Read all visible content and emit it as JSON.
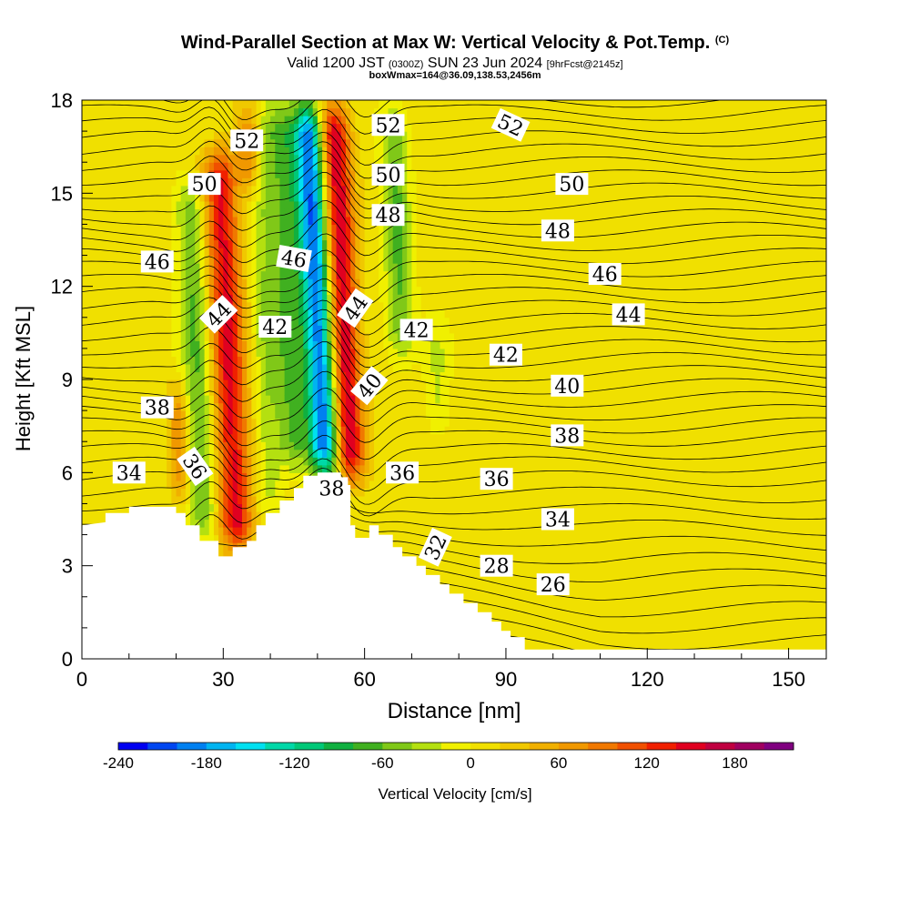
{
  "header": {
    "title": "Wind-Parallel Section at Max W: Vertical Velocity & Pot.Temp.",
    "copyright": "(C)",
    "valid_prefix": "Valid 1200 JST",
    "valid_utc": "(0300Z)",
    "valid_date": "SUN 23 Jun 2024",
    "forecast": "[9hrFcst@2145z]",
    "box_info": "boxWmax=164@36.09,138.53,2456m"
  },
  "chart_data": {
    "type": "heatmap",
    "title": "Wind-Parallel Section at Max W: Vertical Velocity & Pot.Temp.",
    "xlabel": "Distance [nm]",
    "ylabel": "Height [Kft MSL]",
    "xlim": [
      0,
      158
    ],
    "ylim": [
      0,
      18
    ],
    "x_ticks": [
      0,
      30,
      60,
      90,
      120,
      150
    ],
    "y_ticks": [
      0,
      3,
      6,
      9,
      12,
      15,
      18
    ],
    "colorbar": {
      "label": "Vertical Velocity [cm/s]",
      "min": -240,
      "max": 220,
      "step": 20,
      "tick_values": [
        -240,
        -180,
        -120,
        -60,
        0,
        60,
        120,
        180
      ],
      "colors": [
        "#0000f0",
        "#0046f0",
        "#0080f0",
        "#00b4f0",
        "#00e0f0",
        "#00d8a8",
        "#00c878",
        "#10b040",
        "#40b020",
        "#80c818",
        "#b4e010",
        "#f0f000",
        "#f0e000",
        "#f0c800",
        "#f0b000",
        "#f09800",
        "#f07800",
        "#f05000",
        "#f02000",
        "#e00020",
        "#c00040",
        "#a00060",
        "#800080"
      ]
    },
    "terrain": [
      [
        0,
        4.3
      ],
      [
        5,
        4.4
      ],
      [
        5,
        4.7
      ],
      [
        10,
        4.7
      ],
      [
        10,
        4.9
      ],
      [
        20,
        4.9
      ],
      [
        20,
        4.7
      ],
      [
        22,
        4.7
      ],
      [
        22,
        4.3
      ],
      [
        25,
        4.3
      ],
      [
        25,
        3.8
      ],
      [
        29,
        3.8
      ],
      [
        29,
        3.3
      ],
      [
        32,
        3.3
      ],
      [
        32,
        3.6
      ],
      [
        35,
        3.6
      ],
      [
        35,
        3.8
      ],
      [
        37,
        3.8
      ],
      [
        37,
        4.3
      ],
      [
        39,
        4.3
      ],
      [
        39,
        4.7
      ],
      [
        42,
        4.7
      ],
      [
        42,
        5.1
      ],
      [
        45,
        5.1
      ],
      [
        45,
        5.5
      ],
      [
        47,
        5.5
      ],
      [
        47,
        5.9
      ],
      [
        50,
        5.9
      ],
      [
        50,
        6.0
      ],
      [
        55,
        6.0
      ],
      [
        55,
        5.6
      ],
      [
        57,
        5.6
      ],
      [
        57,
        4.3
      ],
      [
        58,
        4.3
      ],
      [
        58,
        3.9
      ],
      [
        61,
        3.9
      ],
      [
        61,
        4.3
      ],
      [
        63,
        4.3
      ],
      [
        63,
        4.0
      ],
      [
        66,
        4.0
      ],
      [
        66,
        3.6
      ],
      [
        68,
        3.6
      ],
      [
        68,
        3.3
      ],
      [
        71,
        3.3
      ],
      [
        71,
        3.0
      ],
      [
        73,
        3.0
      ],
      [
        73,
        2.7
      ],
      [
        76,
        2.7
      ],
      [
        76,
        2.4
      ],
      [
        78,
        2.4
      ],
      [
        78,
        2.1
      ],
      [
        81,
        2.1
      ],
      [
        81,
        1.8
      ],
      [
        84,
        1.8
      ],
      [
        84,
        1.5
      ],
      [
        87,
        1.5
      ],
      [
        87,
        1.2
      ],
      [
        89,
        1.2
      ],
      [
        89,
        0.9
      ],
      [
        91,
        0.9
      ],
      [
        91,
        0.7
      ],
      [
        94,
        0.7
      ],
      [
        94,
        0.3
      ],
      [
        158,
        0.3
      ]
    ],
    "theta_labels": [
      {
        "text": "52",
        "x": 35,
        "y": 16.7,
        "rotate": 0
      },
      {
        "text": "52",
        "x": 65,
        "y": 17.2,
        "rotate": 0
      },
      {
        "text": "52",
        "x": 91,
        "y": 17.2,
        "rotate": 25
      },
      {
        "text": "50",
        "x": 26,
        "y": 15.3,
        "rotate": 0
      },
      {
        "text": "50",
        "x": 65,
        "y": 15.6,
        "rotate": 0
      },
      {
        "text": "50",
        "x": 104,
        "y": 15.3,
        "rotate": 0
      },
      {
        "text": "48",
        "x": 65,
        "y": 14.3,
        "rotate": 0
      },
      {
        "text": "48",
        "x": 101,
        "y": 13.8,
        "rotate": 0
      },
      {
        "text": "46",
        "x": 16,
        "y": 12.8,
        "rotate": 0
      },
      {
        "text": "46",
        "x": 45,
        "y": 12.9,
        "rotate": 10
      },
      {
        "text": "46",
        "x": 111,
        "y": 12.4,
        "rotate": 0
      },
      {
        "text": "44",
        "x": 29,
        "y": 11.1,
        "rotate": -45
      },
      {
        "text": "44",
        "x": 58,
        "y": 11.3,
        "rotate": -55
      },
      {
        "text": "44",
        "x": 116,
        "y": 11.1,
        "rotate": 0
      },
      {
        "text": "42",
        "x": 41,
        "y": 10.7,
        "rotate": 0
      },
      {
        "text": "42",
        "x": 71,
        "y": 10.6,
        "rotate": 0
      },
      {
        "text": "42",
        "x": 90,
        "y": 9.8,
        "rotate": 0
      },
      {
        "text": "40",
        "x": 61,
        "y": 8.8,
        "rotate": -50
      },
      {
        "text": "40",
        "x": 103,
        "y": 8.8,
        "rotate": 0
      },
      {
        "text": "38",
        "x": 16,
        "y": 8.1,
        "rotate": 0
      },
      {
        "text": "38",
        "x": 103,
        "y": 7.2,
        "rotate": 0
      },
      {
        "text": "38",
        "x": 53,
        "y": 5.5,
        "rotate": 0
      },
      {
        "text": "36",
        "x": 24,
        "y": 6.2,
        "rotate": 55
      },
      {
        "text": "36",
        "x": 68,
        "y": 6.0,
        "rotate": 0
      },
      {
        "text": "36",
        "x": 88,
        "y": 5.8,
        "rotate": 0
      },
      {
        "text": "34",
        "x": 10,
        "y": 6.0,
        "rotate": 0
      },
      {
        "text": "34",
        "x": 101,
        "y": 4.5,
        "rotate": 0
      },
      {
        "text": "32",
        "x": 75,
        "y": 3.6,
        "rotate": -65
      },
      {
        "text": "28",
        "x": 88,
        "y": 3.0,
        "rotate": 0
      },
      {
        "text": "26",
        "x": 100,
        "y": 2.4,
        "rotate": 0
      }
    ],
    "vertical_velocity_features": [
      {
        "x": 26,
        "y_bot": 3.8,
        "y_top": 15.5,
        "slope": -0.28,
        "half_width": 3.0,
        "value": -70
      },
      {
        "x": 33,
        "y_bot": 3.4,
        "y_top": 16.5,
        "slope": -0.3,
        "half_width": 3.6,
        "value": 140
      },
      {
        "x": 40,
        "y_bot": 4.5,
        "y_top": 18,
        "slope": -0.2,
        "half_width": 2.6,
        "value": -40
      },
      {
        "x": 45,
        "y_bot": 6,
        "y_top": 18,
        "slope": -0.25,
        "half_width": 3.5,
        "value": -70
      },
      {
        "x": 52,
        "y_bot": 5.8,
        "y_top": 18,
        "slope": -0.35,
        "half_width": 3.2,
        "value": -210
      },
      {
        "x": 57,
        "y_bot": 5.6,
        "y_top": 18,
        "slope": -0.3,
        "half_width": 3.3,
        "value": 160
      },
      {
        "x": 68,
        "y_bot": 9.5,
        "y_top": 18,
        "slope": -0.25,
        "half_width": 2.8,
        "value": -70
      },
      {
        "x": 76,
        "y_bot": 7,
        "y_top": 11,
        "slope": -0.25,
        "half_width": 2.5,
        "value": -30
      },
      {
        "x": 21,
        "y_bot": 5,
        "y_top": 9,
        "slope": -0.2,
        "half_width": 2.0,
        "value": 70
      },
      {
        "x": 36,
        "y_bot": 15,
        "y_top": 18,
        "slope": -0.2,
        "half_width": 2.5,
        "value": 90
      }
    ]
  }
}
